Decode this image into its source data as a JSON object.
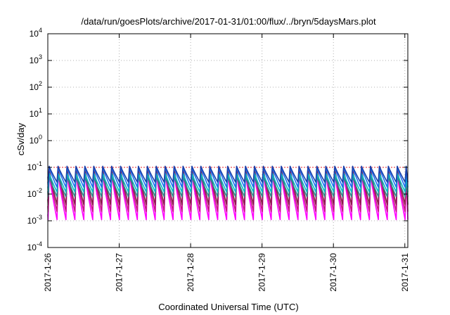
{
  "chart_data": {
    "type": "line",
    "title": "/data/run/goesPlots/archive/2017-01-31/01:00/flux/../bryn/5daysMars.plot",
    "xlabel": "Coordinated Universal Time (UTC)",
    "ylabel": "cSv/day",
    "yscale": "log",
    "ylim": [
      0.0001,
      10000
    ],
    "y_tick_labels": [
      {
        "base": "10",
        "exp": "-4"
      },
      {
        "base": "10",
        "exp": "-3"
      },
      {
        "base": "10",
        "exp": "-2"
      },
      {
        "base": "10",
        "exp": "-1"
      },
      {
        "base": "10",
        "exp": "0"
      },
      {
        "base": "10",
        "exp": "1"
      },
      {
        "base": "10",
        "exp": "2"
      },
      {
        "base": "10",
        "exp": "3"
      },
      {
        "base": "10",
        "exp": "4"
      }
    ],
    "x_ticks": [
      "2017-1-26",
      "2017-1-27",
      "2017-1-28",
      "2017-1-29",
      "2017-1-30",
      "2017-1-31"
    ],
    "xlim": [
      "2017-01-26T00:00",
      "2017-01-31T01:00"
    ],
    "grid": true,
    "reference_line": {
      "y": 0.1,
      "color": "#e0202a",
      "style": "dashed"
    },
    "cycles_per_day": 8,
    "series": [
      {
        "color": "#ff00ff",
        "peak": 0.055,
        "trough": 0.0011
      },
      {
        "color": "#c71585",
        "peak": 0.07,
        "trough": 0.0022
      },
      {
        "color": "#8b1a4a",
        "peak": 0.085,
        "trough": 0.004
      },
      {
        "color": "#2e8b8b",
        "peak": 0.045,
        "trough": 0.008
      },
      {
        "color": "#00bfc4",
        "peak": 0.06,
        "trough": 0.012
      },
      {
        "color": "#1e6ff0",
        "peak": 0.1,
        "trough": 0.018
      },
      {
        "color": "#1a3fa8",
        "peak": 0.11,
        "trough": 0.028
      }
    ]
  }
}
